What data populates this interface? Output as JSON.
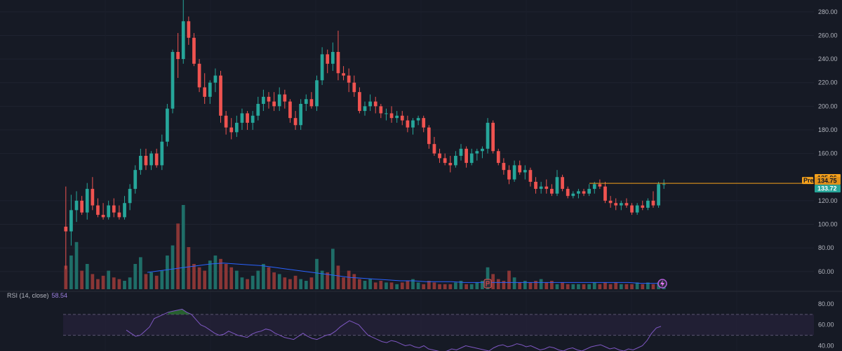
{
  "colors": {
    "background": "#161a25",
    "up": "#26a69a",
    "down": "#ef5350",
    "up_volume": "#1f6e68",
    "down_volume": "#8a3636",
    "volume_ma": "#2962ff",
    "rsi_line": "#7e57c2",
    "rsi_band": "#2a2340",
    "premarket": "#f7a21b",
    "last_price": "#26a69a",
    "axis_text": "#b2b5be",
    "grid": "#1f2330"
  },
  "price_axis": {
    "ticks": [
      "280.00",
      "260.00",
      "240.00",
      "220.00",
      "200.00",
      "180.00",
      "160.00",
      "120.00",
      "100.00",
      "80.00",
      "60.00"
    ]
  },
  "price_badges": {
    "high_label": "135.96",
    "pre_tag": "Pre",
    "pre_value": "134.75",
    "last_value": "133.72"
  },
  "rsi": {
    "title": "RSI (14, close)",
    "value": "58.54",
    "ticks": [
      "80.00",
      "60.00",
      "40.00"
    ]
  },
  "markers": {
    "earnings_icon": "earnings-flag-icon",
    "lightning_icon": "lightning-icon"
  },
  "chart_data": [
    {
      "type": "candlestick",
      "title": "",
      "y_range": [
        45,
        290
      ],
      "grid": true,
      "candles": [
        [
          98,
          132,
          62,
          94
        ],
        [
          94,
          125,
          82,
          112
        ],
        [
          112,
          128,
          102,
          120
        ],
        [
          120,
          124,
          108,
          110
        ],
        [
          110,
          135,
          104,
          130
        ],
        [
          130,
          140,
          112,
          116
        ],
        [
          116,
          122,
          106,
          108
        ],
        [
          108,
          118,
          104,
          106
        ],
        [
          106,
          120,
          104,
          116
        ],
        [
          116,
          122,
          106,
          110
        ],
        [
          110,
          116,
          104,
          106
        ],
        [
          106,
          124,
          104,
          118
        ],
        [
          118,
          134,
          112,
          130
        ],
        [
          130,
          150,
          126,
          146
        ],
        [
          146,
          164,
          142,
          158
        ],
        [
          158,
          164,
          146,
          150
        ],
        [
          150,
          162,
          146,
          160
        ],
        [
          160,
          164,
          148,
          150
        ],
        [
          150,
          176,
          146,
          170
        ],
        [
          170,
          202,
          166,
          198
        ],
        [
          198,
          248,
          194,
          246
        ],
        [
          246,
          262,
          224,
          240
        ],
        [
          240,
          294,
          236,
          272
        ],
        [
          272,
          276,
          252,
          258
        ],
        [
          258,
          262,
          234,
          236
        ],
        [
          236,
          240,
          212,
          216
        ],
        [
          216,
          228,
          202,
          208
        ],
        [
          208,
          222,
          202,
          220
        ],
        [
          220,
          232,
          212,
          226
        ],
        [
          226,
          230,
          186,
          192
        ],
        [
          192,
          196,
          176,
          182
        ],
        [
          182,
          190,
          172,
          178
        ],
        [
          178,
          192,
          174,
          186
        ],
        [
          186,
          198,
          180,
          194
        ],
        [
          194,
          196,
          180,
          186
        ],
        [
          186,
          196,
          180,
          192
        ],
        [
          192,
          208,
          188,
          202
        ],
        [
          202,
          214,
          196,
          208
        ],
        [
          208,
          212,
          198,
          204
        ],
        [
          204,
          212,
          196,
          200
        ],
        [
          200,
          216,
          196,
          210
        ],
        [
          210,
          214,
          198,
          204
        ],
        [
          204,
          206,
          186,
          190
        ],
        [
          190,
          196,
          180,
          184
        ],
        [
          184,
          206,
          180,
          202
        ],
        [
          202,
          210,
          196,
          206
        ],
        [
          206,
          212,
          198,
          200
        ],
        [
          200,
          226,
          196,
          222
        ],
        [
          222,
          250,
          218,
          244
        ],
        [
          244,
          248,
          228,
          236
        ],
        [
          236,
          254,
          230,
          246
        ],
        [
          246,
          264,
          222,
          228
        ],
        [
          228,
          234,
          222,
          226
        ],
        [
          226,
          232,
          212,
          220
        ],
        [
          220,
          226,
          208,
          212
        ],
        [
          212,
          216,
          194,
          196
        ],
        [
          196,
          204,
          192,
          200
        ],
        [
          200,
          210,
          196,
          204
        ],
        [
          204,
          208,
          194,
          200
        ],
        [
          200,
          202,
          190,
          194
        ],
        [
          194,
          198,
          188,
          194
        ],
        [
          194,
          200,
          186,
          190
        ],
        [
          190,
          196,
          186,
          192
        ],
        [
          192,
          196,
          184,
          188
        ],
        [
          188,
          192,
          178,
          182
        ],
        [
          182,
          190,
          176,
          188
        ],
        [
          188,
          192,
          184,
          190
        ],
        [
          190,
          192,
          178,
          182
        ],
        [
          182,
          184,
          164,
          168
        ],
        [
          168,
          174,
          158,
          160
        ],
        [
          160,
          164,
          152,
          156
        ],
        [
          156,
          160,
          150,
          152
        ],
        [
          152,
          158,
          144,
          150
        ],
        [
          150,
          162,
          148,
          158
        ],
        [
          158,
          168,
          154,
          164
        ],
        [
          164,
          166,
          148,
          152
        ],
        [
          152,
          164,
          150,
          160
        ],
        [
          160,
          164,
          154,
          162
        ],
        [
          162,
          166,
          156,
          164
        ],
        [
          164,
          190,
          160,
          186
        ],
        [
          186,
          188,
          160,
          162
        ],
        [
          162,
          164,
          150,
          152
        ],
        [
          152,
          156,
          142,
          146
        ],
        [
          146,
          150,
          134,
          138
        ],
        [
          138,
          154,
          136,
          150
        ],
        [
          150,
          154,
          142,
          144
        ],
        [
          144,
          150,
          138,
          146
        ],
        [
          146,
          148,
          132,
          136
        ],
        [
          136,
          140,
          126,
          130
        ],
        [
          130,
          136,
          126,
          132
        ],
        [
          132,
          138,
          126,
          130
        ],
        [
          130,
          134,
          124,
          126
        ],
        [
          126,
          146,
          124,
          140
        ],
        [
          140,
          142,
          128,
          130
        ],
        [
          130,
          132,
          122,
          124
        ],
        [
          124,
          128,
          122,
          126
        ],
        [
          126,
          130,
          122,
          128
        ],
        [
          128,
          130,
          124,
          126
        ],
        [
          126,
          134,
          124,
          130
        ],
        [
          130,
          136,
          126,
          134
        ],
        [
          134,
          138,
          130,
          132
        ],
        [
          132,
          136,
          118,
          120
        ],
        [
          120,
          124,
          114,
          118
        ],
        [
          118,
          122,
          112,
          116
        ],
        [
          116,
          120,
          112,
          118
        ],
        [
          118,
          122,
          114,
          116
        ],
        [
          116,
          118,
          108,
          110
        ],
        [
          110,
          118,
          108,
          116
        ],
        [
          116,
          120,
          112,
          114
        ],
        [
          114,
          122,
          112,
          120
        ],
        [
          120,
          128,
          114,
          116
        ],
        [
          116,
          136,
          114,
          134
        ],
        [
          134,
          138,
          130,
          134
        ]
      ],
      "premarket_price": 134.75,
      "high_reference": 135.96
    },
    {
      "type": "bar",
      "title": "",
      "y_range": [
        0,
        1
      ],
      "values": [
        0.28,
        0.4,
        0.56,
        0.22,
        0.3,
        0.18,
        0.12,
        0.16,
        0.22,
        0.14,
        0.12,
        0.1,
        0.14,
        0.3,
        0.38,
        0.18,
        0.2,
        0.16,
        0.22,
        0.4,
        0.52,
        0.78,
        1.0,
        0.5,
        0.3,
        0.26,
        0.22,
        0.34,
        0.4,
        0.36,
        0.3,
        0.26,
        0.22,
        0.14,
        0.12,
        0.16,
        0.22,
        0.3,
        0.26,
        0.2,
        0.18,
        0.14,
        0.12,
        0.16,
        0.12,
        0.1,
        0.14,
        0.36,
        0.22,
        0.2,
        0.48,
        0.28,
        0.14,
        0.22,
        0.18,
        0.12,
        0.1,
        0.12,
        0.08,
        0.1,
        0.08,
        0.08,
        0.06,
        0.08,
        0.1,
        0.12,
        0.08,
        0.06,
        0.1,
        0.08,
        0.06,
        0.06,
        0.06,
        0.08,
        0.1,
        0.06,
        0.06,
        0.08,
        0.1,
        0.26,
        0.18,
        0.12,
        0.1,
        0.22,
        0.14,
        0.08,
        0.1,
        0.08,
        0.1,
        0.12,
        0.08,
        0.1,
        0.06,
        0.08,
        0.06,
        0.06,
        0.06,
        0.06,
        0.06,
        0.08,
        0.06,
        0.08,
        0.06,
        0.08,
        0.06,
        0.06,
        0.06,
        0.08,
        0.06,
        0.08,
        0.06,
        0.08,
        0.06,
        0.22,
        0.1
      ],
      "moving_average": [
        0.2,
        0.22,
        0.24,
        0.26,
        0.28,
        0.3,
        0.31,
        0.3,
        0.29,
        0.28,
        0.26,
        0.24,
        0.22,
        0.2,
        0.18,
        0.16,
        0.14,
        0.13,
        0.12,
        0.11,
        0.1,
        0.1,
        0.09,
        0.09,
        0.09,
        0.08,
        0.08,
        0.08,
        0.08,
        0.08,
        0.08,
        0.08,
        0.08,
        0.08,
        0.08,
        0.08,
        0.08,
        0.08,
        0.08,
        0.07,
        0.07,
        0.07
      ]
    },
    {
      "type": "line",
      "title": "",
      "y_range": [
        35,
        90
      ],
      "band": [
        50,
        70
      ],
      "values": [
        55,
        52,
        49,
        50,
        54,
        58,
        66,
        68,
        70,
        72,
        73,
        74,
        75,
        72,
        70,
        65,
        60,
        58,
        55,
        52,
        50,
        51,
        54,
        52,
        50,
        49,
        48,
        51,
        53,
        54,
        56,
        55,
        52,
        50,
        48,
        47,
        46,
        49,
        52,
        49,
        47,
        46,
        48,
        50,
        51,
        54,
        58,
        61,
        64,
        62,
        60,
        55,
        50,
        48,
        46,
        44,
        43,
        45,
        44,
        42,
        40,
        41,
        39,
        38,
        40,
        37,
        36,
        35,
        34,
        35,
        37,
        36,
        38,
        40,
        39,
        38,
        37,
        36,
        35,
        38,
        40,
        41,
        39,
        40,
        42,
        41,
        39,
        40,
        38,
        36,
        37,
        39,
        38,
        36,
        35,
        37,
        38,
        36,
        35,
        37,
        39,
        40,
        41,
        39,
        37,
        38,
        36,
        35,
        37,
        36,
        38,
        40,
        45,
        52,
        57,
        58.54
      ]
    }
  ]
}
